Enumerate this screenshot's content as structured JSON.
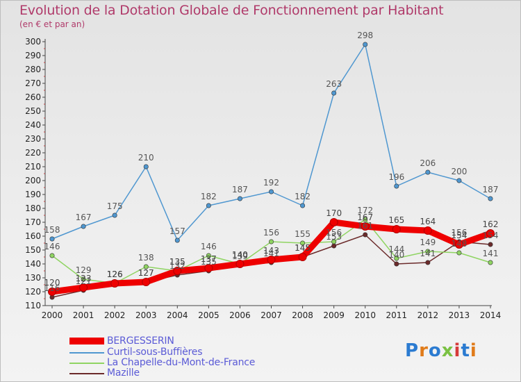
{
  "header": {
    "title": "Evolution de la Dotation Globale de Fonctionnement par Habitant",
    "subtitle": "(en € et par an)"
  },
  "logo": {
    "text": "Proxiti",
    "colors": [
      "#2b7bd1",
      "#e07b1a",
      "#2b7bd1",
      "#7ac143",
      "#d63b3b",
      "#2b7bd1",
      "#e07b1a"
    ]
  },
  "chart_data": {
    "type": "line",
    "x": [
      "2000",
      "2001",
      "2002",
      "2003",
      "2004",
      "2005",
      "2006",
      "2007",
      "2008",
      "2009",
      "2010",
      "2011",
      "2012",
      "2013",
      "2014"
    ],
    "ylim": [
      110,
      300
    ],
    "yticks": [
      110,
      120,
      130,
      140,
      150,
      160,
      170,
      180,
      190,
      200,
      210,
      220,
      230,
      240,
      250,
      260,
      270,
      280,
      290,
      300
    ],
    "grid": false,
    "legend_position": "bottom-left",
    "series": [
      {
        "name": "BERGESSERIN",
        "color": "#ee0000",
        "values": [
          120,
          123,
          126,
          127,
          135,
          137,
          140,
          143,
          145,
          170,
          167,
          165,
          164,
          154,
          162
        ],
        "labels": [
          "120",
          "123",
          "126",
          "127",
          "135",
          "137",
          "140",
          "143",
          "145",
          "170",
          "167",
          "165",
          "164",
          "154",
          "162"
        ]
      },
      {
        "name": "Curtil-sous-Buffières",
        "color": "#4f97d0",
        "values": [
          158,
          167,
          175,
          210,
          157,
          182,
          187,
          192,
          182,
          263,
          298,
          196,
          206,
          200,
          187
        ],
        "labels": [
          "158",
          "167",
          "175",
          "210",
          "157",
          "182",
          "187",
          "192",
          "182",
          "263",
          "298",
          "196",
          "206",
          "200",
          "187"
        ]
      },
      {
        "name": "La Chapelle-du-Mont-de-France",
        "color": "#8fd462",
        "values": [
          146,
          129,
          126,
          138,
          135,
          146,
          140,
          156,
          155,
          156,
          172,
          144,
          149,
          148,
          141
        ],
        "labels": [
          "146",
          "129",
          "126",
          "138",
          "135",
          "146",
          "140",
          "156",
          "155",
          "156",
          "172",
          "144",
          "149",
          "148",
          "141"
        ]
      },
      {
        "name": "Mazille",
        "color": "#6b2a2a",
        "values": [
          116,
          121,
          126,
          127,
          132,
          135,
          139,
          141,
          145,
          153,
          161,
          140,
          141,
          156,
          154
        ],
        "labels": [
          "116",
          "121",
          "126",
          "127",
          "132",
          "135",
          "139",
          "141",
          "145",
          "153",
          "161",
          "140",
          "141",
          "156",
          "154"
        ]
      }
    ]
  }
}
